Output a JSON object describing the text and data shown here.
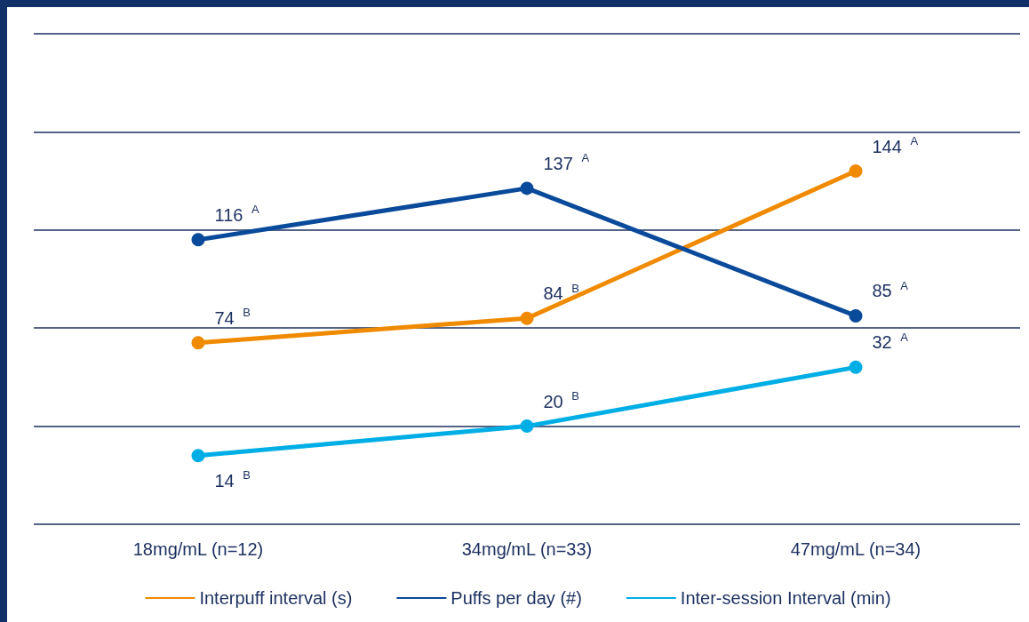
{
  "chart_data": {
    "type": "line",
    "categories": [
      "18mg/mL (n=12)",
      "34mg/mL (n=33)",
      "47mg/mL (n=34)"
    ],
    "series": [
      {
        "name": "Interpuff interval (s)",
        "color": "#f08a00",
        "values": [
          74,
          84,
          144
        ],
        "value_labels": [
          "74 $^{B}$",
          "84 $^{B}$",
          "144 $^{A}$"
        ]
      },
      {
        "name": "Puffs per day (#)",
        "color": "#0a4a9a",
        "values": [
          116,
          137,
          85
        ],
        "value_labels": [
          "116 $^{A}$",
          "137 $^{A}$",
          "85 $^{A}$"
        ]
      },
      {
        "name": "Inter-session Interval (min)",
        "color": "#00aee6",
        "axis": "y2",
        "values": [
          14,
          20,
          32
        ],
        "value_labels": [
          "14 $^{B}$",
          "20 $^{B}$",
          "32 $^{A}$"
        ]
      }
    ],
    "ylim": [
      0,
      200
    ],
    "yticks": [
      0,
      40,
      80,
      120,
      160,
      200
    ],
    "y2lim": [
      0,
      100
    ],
    "tick_labels": "x",
    "grid": "y",
    "legend": "bottom",
    "marker": "circle",
    "line_style": "solid"
  }
}
